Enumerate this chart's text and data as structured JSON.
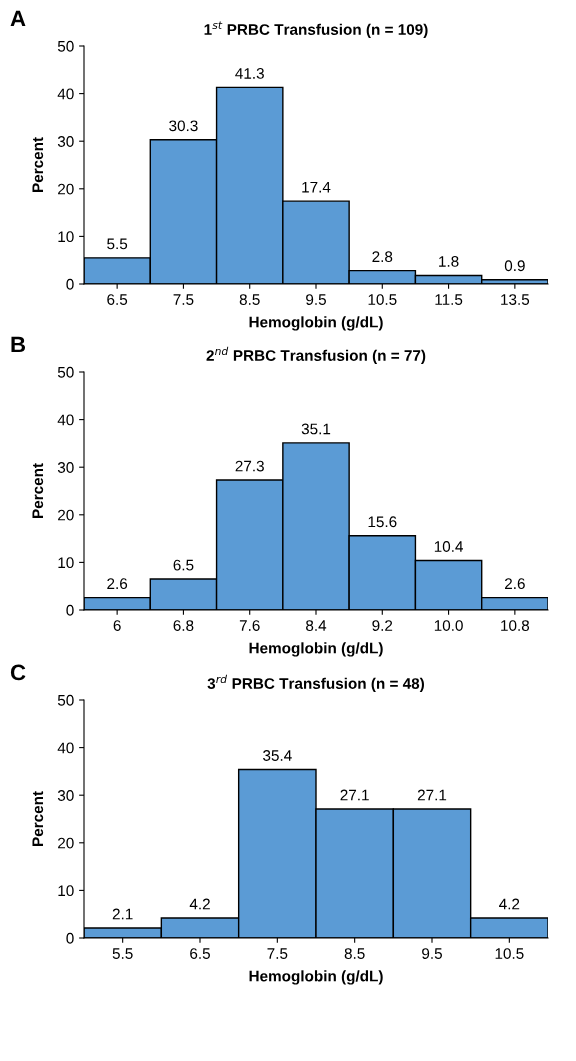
{
  "chart_data": [
    {
      "type": "bar",
      "title": "1$^{st}$ PRBC Transfusion (n = 109)",
      "xlabel": "Hemoglobin (g/dL)",
      "ylabel": "Percent",
      "annotations": [
        "A"
      ],
      "categories": [
        "6.5",
        "7.5",
        "8.5",
        "9.5",
        "10.5",
        "11.5",
        "13.5"
      ],
      "values": [
        5.5,
        30.3,
        41.3,
        17.4,
        2.8,
        1.8,
        0.9
      ],
      "color": "#5b9bd5",
      "ylim": [
        0,
        50
      ],
      "yticks": [
        0,
        10,
        20,
        30,
        40,
        50
      ],
      "data_labels": true,
      "grid": false,
      "legend": false
    },
    {
      "type": "bar",
      "title": "2$^{nd}$ PRBC Transfusion (n = 77)",
      "xlabel": "Hemoglobin (g/dL)",
      "ylabel": "Percent",
      "annotations": [
        "B"
      ],
      "categories": [
        "6",
        "6.8",
        "7.6",
        "8.4",
        "9.2",
        "10.0",
        "10.8"
      ],
      "values": [
        2.6,
        6.5,
        27.3,
        35.1,
        15.6,
        10.4,
        2.6
      ],
      "color": "#5b9bd5",
      "ylim": [
        0,
        50
      ],
      "yticks": [
        0,
        10,
        20,
        30,
        40,
        50
      ],
      "data_labels": true,
      "grid": false,
      "legend": false
    },
    {
      "type": "bar",
      "title": "3$^{rd}$ PRBC Transfusion (n = 48)",
      "xlabel": "Hemoglobin (g/dL)",
      "ylabel": "Percent",
      "annotations": [
        "C"
      ],
      "categories": [
        "5.5",
        "6.5",
        "7.5",
        "8.5",
        "9.5",
        "10.5"
      ],
      "values": [
        2.1,
        4.2,
        35.4,
        27.1,
        27.1,
        4.2
      ],
      "color": "#5b9bd5",
      "ylim": [
        0,
        50
      ],
      "yticks": [
        0,
        10,
        20,
        30,
        40,
        50
      ],
      "data_labels": true,
      "grid": false,
      "legend": false
    }
  ]
}
